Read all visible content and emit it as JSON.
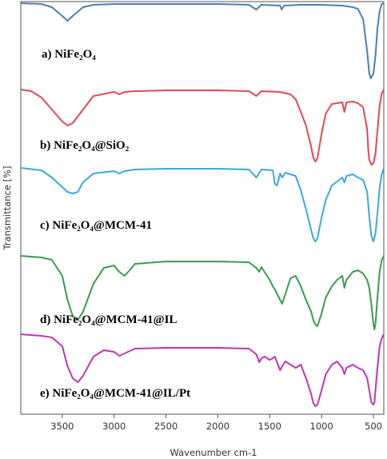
{
  "chart_data": {
    "type": "line",
    "xlabel": "Wavenumber cm-1",
    "ylabel": "Transmittance [%]",
    "xlim": [
      3900,
      400
    ],
    "x_reversed": true,
    "x_ticks": [
      3500,
      3000,
      2500,
      2000,
      1500,
      1000,
      500
    ],
    "y_ticks_shown": false,
    "grid": false,
    "legend": "none",
    "series": [
      {
        "key": "a",
        "name": "a) NiFe₂O₄",
        "color": "#4a7fb0",
        "offset": 4,
        "x": [
          3900,
          3700,
          3600,
          3500,
          3450,
          3400,
          3300,
          3200,
          3000,
          2900,
          2500,
          2000,
          1700,
          1630,
          1580,
          1400,
          1385,
          1360,
          1200,
          1000,
          800,
          700,
          650,
          600,
          560,
          540,
          525,
          500,
          480,
          460,
          440,
          420,
          400
        ],
        "y": [
          100,
          99,
          95,
          84,
          78,
          84,
          95,
          98,
          99,
          99,
          99,
          99,
          98,
          92,
          98,
          97,
          92,
          97,
          98,
          98,
          97,
          95,
          93,
          80,
          40,
          12,
          6,
          12,
          35,
          70,
          90,
          99,
          100
        ]
      },
      {
        "key": "b",
        "name": "b) NiFe₂O₄@SiO₂",
        "color": "#e04a55",
        "offset": 112,
        "x": [
          3900,
          3800,
          3700,
          3600,
          3500,
          3450,
          3400,
          3300,
          3200,
          3000,
          2950,
          2900,
          2800,
          2500,
          2000,
          1700,
          1630,
          1580,
          1400,
          1300,
          1250,
          1200,
          1150,
          1100,
          1080,
          1060,
          1040,
          1000,
          960,
          900,
          800,
          780,
          760,
          700,
          650,
          600,
          560,
          550,
          540,
          520,
          500,
          480,
          460,
          440,
          420,
          400
        ],
        "y": [
          100,
          98,
          90,
          75,
          60,
          55,
          58,
          75,
          92,
          97,
          94,
          97,
          98,
          99,
          99,
          98,
          92,
          98,
          97,
          94,
          88,
          72,
          55,
          28,
          15,
          10,
          14,
          45,
          70,
          82,
          84,
          72,
          84,
          85,
          83,
          78,
          50,
          25,
          12,
          6,
          8,
          20,
          50,
          80,
          95,
          100
        ]
      },
      {
        "key": "c",
        "name": "c) NiFe₂O₄@MCM-41",
        "color": "#3aaad8",
        "offset": 210,
        "x": [
          3900,
          3700,
          3600,
          3500,
          3450,
          3400,
          3350,
          3300,
          3200,
          3000,
          2950,
          2900,
          2800,
          2500,
          2000,
          1700,
          1630,
          1580,
          1470,
          1450,
          1430,
          1400,
          1380,
          1350,
          1250,
          1200,
          1150,
          1100,
          1080,
          1060,
          1040,
          1000,
          960,
          900,
          800,
          780,
          760,
          700,
          650,
          600,
          560,
          540,
          520,
          500,
          480,
          460,
          440,
          420,
          400
        ],
        "y": [
          100,
          97,
          88,
          76,
          70,
          68,
          70,
          82,
          93,
          96,
          93,
          96,
          98,
          99,
          99,
          98,
          88,
          98,
          97,
          80,
          78,
          93,
          88,
          94,
          90,
          72,
          48,
          22,
          12,
          8,
          12,
          38,
          60,
          78,
          88,
          82,
          90,
          92,
          88,
          85,
          70,
          40,
          15,
          8,
          18,
          45,
          75,
          92,
          100
        ]
      },
      {
        "key": "d",
        "name": "d) NiFe₂O₄@MCM-41@IL",
        "color": "#3a9b50",
        "offset": 320,
        "x": [
          3900,
          3800,
          3700,
          3600,
          3500,
          3450,
          3400,
          3350,
          3300,
          3200,
          3100,
          3000,
          2950,
          2900,
          2850,
          2800,
          2500,
          2000,
          1700,
          1630,
          1600,
          1580,
          1550,
          1500,
          1470,
          1450,
          1400,
          1380,
          1350,
          1300,
          1250,
          1200,
          1150,
          1100,
          1080,
          1060,
          1040,
          1000,
          960,
          900,
          850,
          800,
          780,
          760,
          700,
          650,
          600,
          560,
          540,
          520,
          500,
          490,
          480,
          460,
          440,
          420,
          400
        ],
        "y": [
          100,
          99,
          98,
          95,
          75,
          45,
          25,
          20,
          30,
          65,
          85,
          88,
          80,
          75,
          82,
          90,
          93,
          93,
          92,
          85,
          80,
          86,
          80,
          70,
          62,
          58,
          45,
          40,
          52,
          72,
          75,
          62,
          45,
          30,
          20,
          14,
          12,
          28,
          48,
          62,
          70,
          75,
          60,
          70,
          80,
          82,
          78,
          70,
          60,
          40,
          15,
          8,
          15,
          50,
          80,
          95,
          100
        ]
      },
      {
        "key": "e",
        "name": "e) NiFe₂O₄@MCM-41@IL/Pt",
        "color": "#c035b0",
        "offset": 418,
        "x": [
          3900,
          3800,
          3700,
          3600,
          3500,
          3450,
          3400,
          3350,
          3300,
          3200,
          3100,
          3000,
          2950,
          2900,
          2800,
          2500,
          2000,
          1700,
          1630,
          1600,
          1580,
          1550,
          1500,
          1470,
          1450,
          1400,
          1380,
          1350,
          1300,
          1250,
          1200,
          1150,
          1100,
          1080,
          1060,
          1040,
          1000,
          960,
          900,
          850,
          800,
          780,
          760,
          700,
          650,
          600,
          560,
          540,
          520,
          500,
          490,
          480,
          460,
          440,
          420,
          400
        ],
        "y": [
          100,
          99,
          98,
          96,
          85,
          60,
          45,
          40,
          48,
          72,
          80,
          78,
          73,
          76,
          82,
          83,
          83,
          82,
          75,
          65,
          70,
          72,
          68,
          70,
          72,
          55,
          60,
          66,
          62,
          58,
          62,
          45,
          25,
          14,
          10,
          12,
          30,
          50,
          62,
          66,
          58,
          50,
          58,
          62,
          58,
          55,
          45,
          30,
          15,
          12,
          15,
          30,
          60,
          85,
          95,
          100
        ]
      }
    ]
  }
}
